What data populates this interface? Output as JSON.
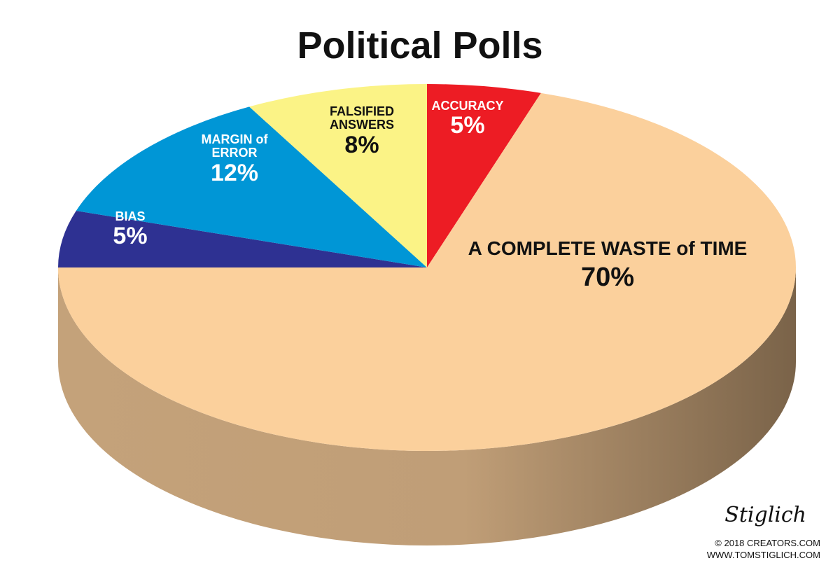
{
  "chart_data": {
    "type": "pie",
    "title": "Political Polls",
    "categories": [
      "ACCURACY",
      "A COMPLETE WASTE of TIME",
      "BIAS",
      "MARGIN of ERROR",
      "FALSIFIED ANSWERS"
    ],
    "values": [
      5,
      70,
      5,
      12,
      8
    ],
    "value_labels": [
      "5%",
      "70%",
      "5%",
      "12%",
      "8%"
    ],
    "colors": [
      "#ed1c24",
      "#fbd09c",
      "#2e3192",
      "#0096d6",
      "#fbf386"
    ],
    "label_colors": [
      "#ffffff",
      "#111111",
      "#ffffff",
      "#ffffff",
      "#111111"
    ]
  },
  "signature": "Stiglich",
  "credits": [
    "© 2018 CREATORS.COM",
    "WWW.TOMSTIGLICH.COM"
  ]
}
